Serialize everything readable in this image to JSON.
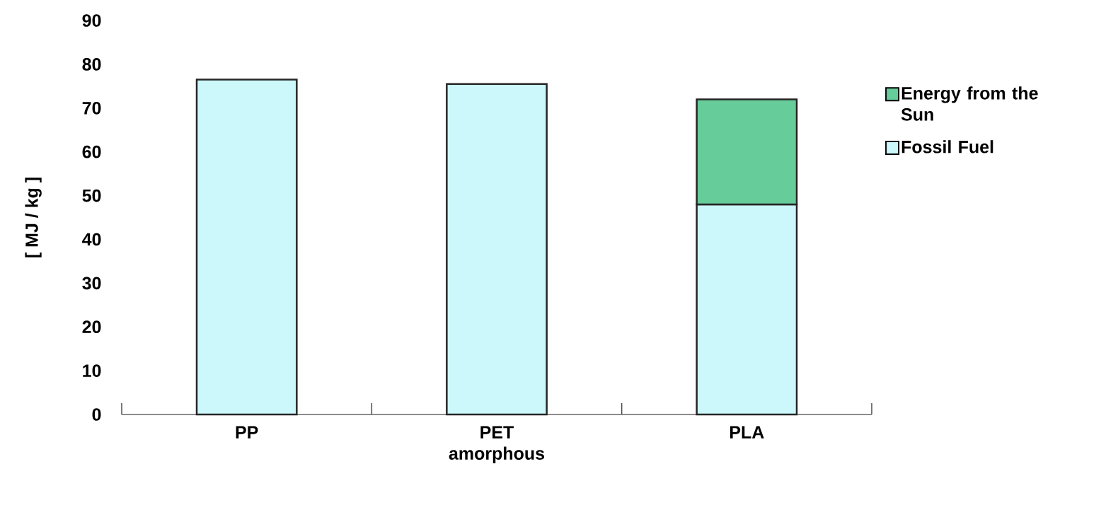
{
  "chart_data": {
    "type": "bar",
    "stacked": true,
    "ylabel": "[ MJ / kg ]",
    "categories": [
      "PP",
      "PET amorphous",
      "PLA"
    ],
    "series": [
      {
        "name": "Fossil Fuel",
        "color": "#ccf8fc",
        "values": [
          76.5,
          75.5,
          48
        ]
      },
      {
        "name": "Energy from the Sun",
        "color": "#66cc99",
        "values": [
          null,
          null,
          24
        ]
      }
    ],
    "ylim": [
      0,
      90
    ],
    "yticks": [
      0,
      10,
      20,
      30,
      40,
      50,
      60,
      70,
      80,
      90
    ],
    "grid": false,
    "legend": "right"
  }
}
